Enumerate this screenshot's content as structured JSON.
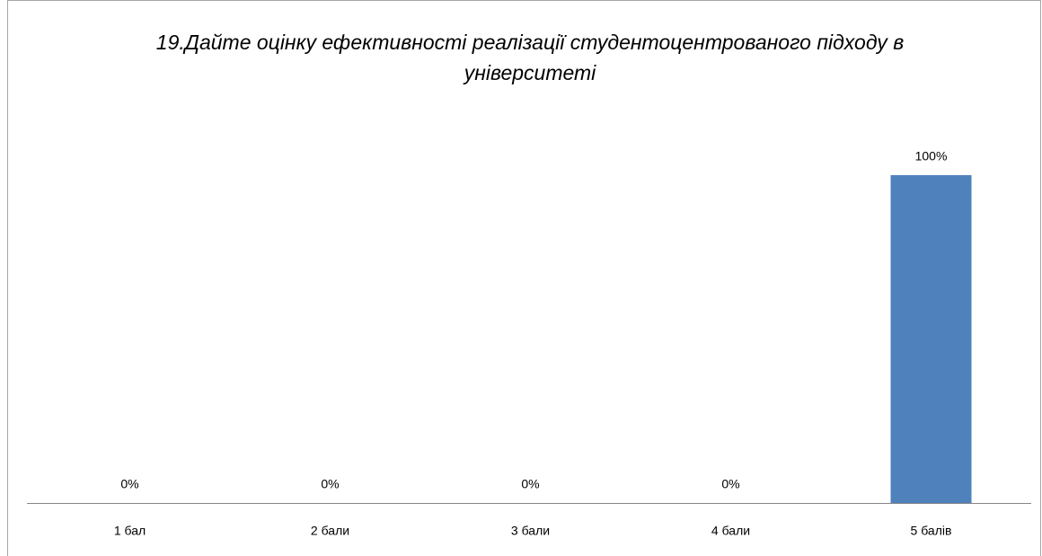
{
  "chart_data": {
    "type": "bar",
    "title": "19.Дайте оцінку ефективності реалізації студентоцентрованого підходу в університеті",
    "categories": [
      "1 бал",
      "2 бали",
      "3 бали",
      "4 бали",
      "5 балів"
    ],
    "values": [
      0,
      0,
      0,
      0,
      100
    ],
    "value_labels": [
      "0%",
      "0%",
      "0%",
      "0%",
      "100%"
    ],
    "color": "#4f81bd",
    "ylim": [
      0,
      100
    ]
  }
}
